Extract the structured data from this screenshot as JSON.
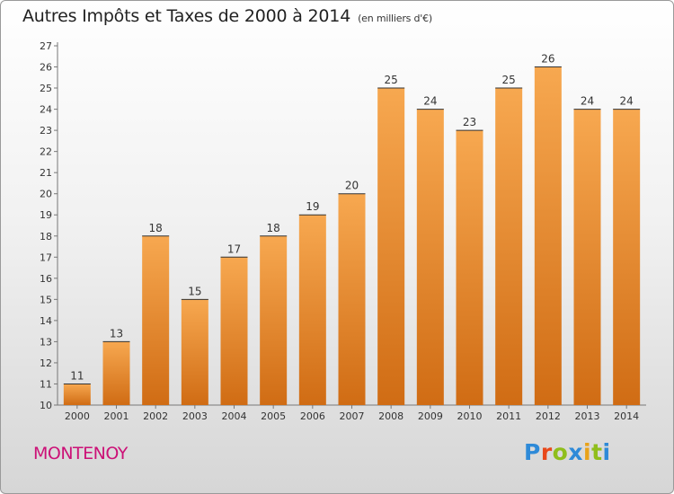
{
  "header": {
    "title": "Autres Impôts et Taxes de 2000 à 2014",
    "subtitle": "(en milliers d'€)"
  },
  "footer": {
    "commune": "MONTENOY",
    "logo": [
      "P",
      "r",
      "o",
      "x",
      "i",
      "t",
      "i"
    ]
  },
  "colors": {
    "bar_light": "#f7a850",
    "bar_dark": "#d06c14",
    "commune": "#cc1177",
    "logo": [
      "#2e8ad8",
      "#e8481a",
      "#8fbe1c",
      "#2e8ad8",
      "#e8a21a",
      "#8fbe1c",
      "#2e8ad8"
    ]
  },
  "chart_data": {
    "type": "bar",
    "title": "Autres Impôts et Taxes de 2000 à 2014",
    "subtitle": "(en milliers d'€)",
    "categories": [
      "2000",
      "2001",
      "2002",
      "2003",
      "2004",
      "2005",
      "2006",
      "2007",
      "2008",
      "2009",
      "2010",
      "2011",
      "2012",
      "2013",
      "2014"
    ],
    "values": [
      11,
      13,
      18,
      15,
      17,
      18,
      19,
      20,
      25,
      24,
      23,
      25,
      26,
      24,
      24
    ],
    "ylim": [
      10,
      27
    ],
    "yticks": [
      10,
      11,
      12,
      13,
      14,
      15,
      16,
      17,
      18,
      19,
      20,
      21,
      22,
      23,
      24,
      25,
      26,
      27
    ],
    "grid": false,
    "data_labels": true
  }
}
